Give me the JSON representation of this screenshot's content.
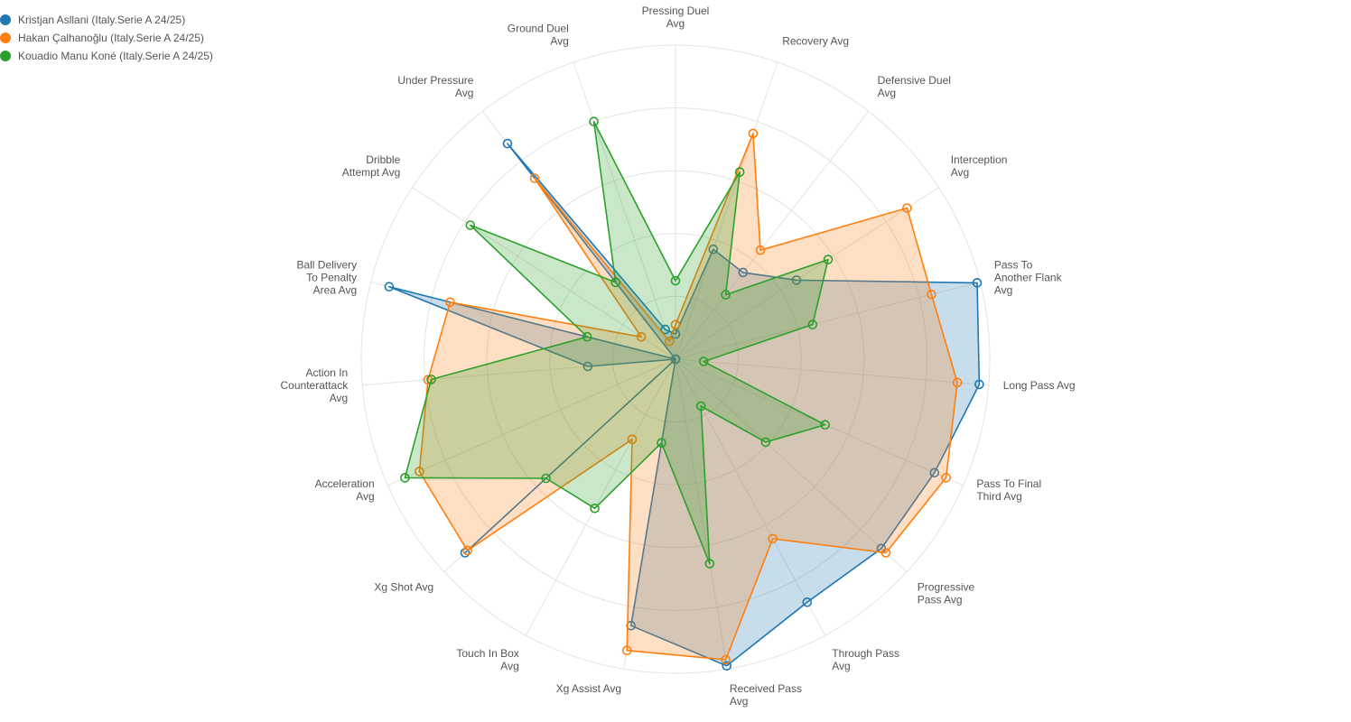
{
  "chart_data": {
    "type": "radar",
    "axes": [
      [
        "Pressing Duel",
        "Avg"
      ],
      [
        "Recovery Avg"
      ],
      [
        "Defensive Duel",
        "Avg"
      ],
      [
        "Interception",
        "Avg"
      ],
      [
        "Pass To",
        "Another Flank",
        "Avg"
      ],
      [
        "Long Pass Avg"
      ],
      [
        "Pass To Final",
        "Third Avg"
      ],
      [
        "Progressive",
        "Pass Avg"
      ],
      [
        "Through Pass",
        "Avg"
      ],
      [
        "Received Pass",
        "Avg"
      ],
      [
        "Xg Assist Avg"
      ],
      [
        "Touch In Box",
        "Avg"
      ],
      [
        "Xg Shot Avg"
      ],
      [
        "Acceleration",
        "Avg"
      ],
      [
        "Action In",
        "Counterattack",
        "Avg"
      ],
      [
        "Ball Delivery",
        "To Penalty",
        "Area Avg"
      ],
      [
        "Dribble",
        "Attempt Avg"
      ],
      [
        "Under Pressure",
        "Avg"
      ],
      [
        "Ground Duel",
        "Avg"
      ]
    ],
    "rmax": 1.0,
    "series": [
      {
        "name": "Kristjan Asllani (Italy.Serie A 24/25)",
        "color": "#1f77b4",
        "values": [
          0.08,
          0.37,
          0.35,
          0.46,
          0.99,
          0.97,
          0.9,
          0.89,
          0.88,
          0.99,
          0.86,
          0.0,
          0.91,
          0.0,
          0.28,
          0.94,
          0.0,
          0.87,
          0.1
        ]
      },
      {
        "name": "Hakan Çalhanoğlu (Italy.Serie A 24/25)",
        "color": "#ff7f0e",
        "values": [
          0.11,
          0.76,
          0.44,
          0.88,
          0.84,
          0.9,
          0.94,
          0.91,
          0.65,
          0.97,
          0.94,
          0.29,
          0.9,
          0.89,
          0.79,
          0.74,
          0.13,
          0.73,
          0.06
        ]
      },
      {
        "name": "Kouadio Manu Koné (Italy.Serie A 24/25)",
        "color": "#2ca02c",
        "values": [
          0.25,
          0.63,
          0.26,
          0.58,
          0.45,
          0.09,
          0.52,
          0.39,
          0.17,
          0.66,
          0.27,
          0.54,
          0.56,
          0.94,
          0.78,
          0.29,
          0.78,
          0.31,
          0.8
        ]
      }
    ]
  }
}
